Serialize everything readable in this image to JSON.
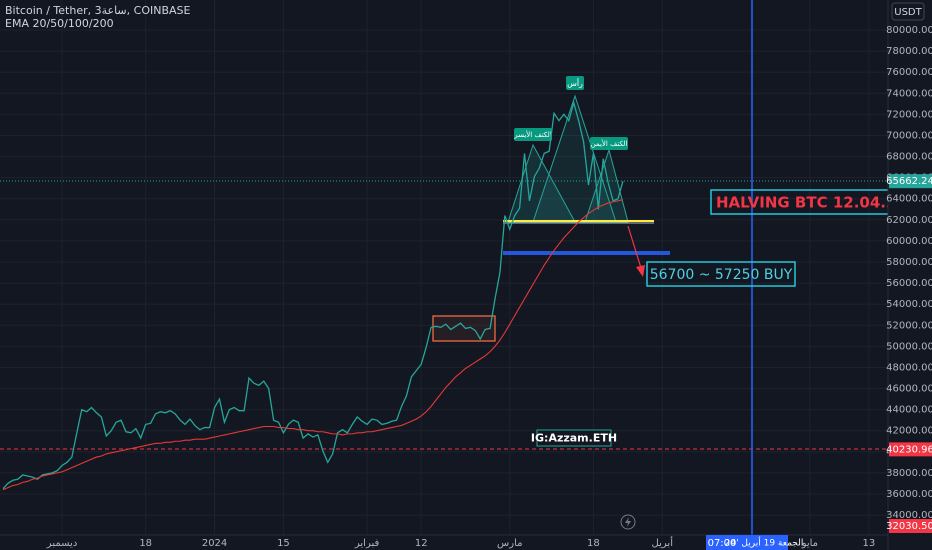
{
  "chart_data": {
    "type": "line",
    "title": "Bitcoin / Tether, 3ساعة, COINBASE",
    "subtitle": "EMA 20/50/100/200",
    "currency": "USDT",
    "categories": [
      null,
      null,
      null,
      null,
      null,
      null,
      null,
      null,
      null,
      null,
      null,
      null,
      "ديسمبر",
      null,
      null,
      null,
      null,
      null,
      null,
      null,
      null,
      null,
      null,
      null,
      null,
      null,
      null,
      null,
      null,
      "18",
      null,
      null,
      null,
      null,
      null,
      null,
      null,
      null,
      null,
      null,
      null,
      null,
      null,
      "2024",
      null,
      null,
      null,
      null,
      null,
      null,
      null,
      null,
      null,
      null,
      null,
      null,
      null,
      "15",
      null,
      null,
      null,
      null,
      null,
      null,
      null,
      null,
      null,
      null,
      null,
      null,
      null,
      null,
      null,
      null,
      "فبراير",
      null,
      null,
      null,
      null,
      null,
      null,
      null,
      null,
      null,
      null,
      "12",
      null,
      null,
      null,
      null,
      null,
      null,
      null,
      null,
      null,
      null,
      null,
      null,
      null,
      null,
      null,
      null,
      null,
      "مارس",
      null,
      null,
      null,
      null,
      null,
      null,
      null,
      null,
      null,
      null,
      null,
      null,
      null,
      null,
      null,
      null,
      "18",
      null,
      null,
      null,
      null,
      null,
      null,
      null,
      null,
      null,
      null,
      null,
      null,
      null,
      "أبريل",
      null,
      null,
      null,
      null,
      null,
      null,
      null,
      null,
      null,
      null,
      null,
      null,
      null,
      null,
      null,
      null,
      null,
      null,
      null,
      null,
      null,
      null,
      null,
      null,
      null,
      null,
      null,
      null,
      null,
      "مايو",
      null,
      null,
      null,
      null,
      null,
      null,
      null,
      null,
      null,
      null,
      null,
      "13",
      null,
      null,
      null,
      null
    ],
    "series": [
      {
        "color": "#26a69a",
        "values": [
          36500,
          37000,
          37300,
          37400,
          37800,
          37700,
          37600,
          37400,
          37800,
          37900,
          38000,
          38200,
          38700,
          39000,
          39500,
          41800,
          44000,
          43800,
          44200,
          43700,
          43300,
          41500,
          42000,
          42800,
          43000,
          41900,
          41800,
          42200,
          41300,
          42600,
          42700,
          43600,
          43800,
          43700,
          43900,
          43600,
          43000,
          42600,
          43100,
          42500,
          42100,
          42300,
          42300,
          44200,
          45000,
          42800,
          44000,
          44200,
          43900,
          43900,
          47000,
          46500,
          46300,
          46700,
          46000,
          43000,
          42800,
          41800,
          42600,
          43000,
          42800,
          41300,
          41700,
          41400,
          41600,
          40100,
          39000,
          39800,
          41800,
          42100,
          41800,
          42600,
          43300,
          42900,
          42600,
          43100,
          43000,
          42600,
          42700,
          42900,
          43000,
          44300,
          45300,
          47100,
          47700,
          48300,
          49900,
          51800,
          51900,
          51800,
          52100,
          51600,
          51900,
          52200,
          51700,
          51800,
          51500,
          50700,
          51600,
          51700,
          54500,
          57000,
          62400,
          61100,
          62400,
          63100,
          68300,
          63800,
          66100,
          66900,
          68300,
          68500,
          72100,
          71400,
          72000,
          71400,
          73100,
          71400,
          69400,
          65300,
          68300,
          63000,
          67800,
          65500,
          63800,
          64000,
          65662.24,
          null,
          null,
          null,
          null,
          null,
          null,
          null,
          null,
          null,
          null,
          null,
          null,
          null,
          null,
          null,
          null,
          null,
          null,
          null,
          null,
          null,
          null,
          null,
          null,
          null,
          null,
          null,
          null,
          null,
          null,
          null,
          null,
          null,
          null,
          null,
          null,
          null,
          null,
          null,
          null,
          null,
          null,
          null,
          null,
          null,
          null,
          null,
          null,
          null,
          null,
          null,
          null,
          null,
          null
        ]
      },
      {
        "color": "#e53935",
        "values": [
          36400,
          36600,
          36800,
          36900,
          37100,
          37200,
          37400,
          37500,
          37700,
          37800,
          37900,
          38000,
          38100,
          38300,
          38500,
          38700,
          38900,
          39100,
          39300,
          39500,
          39600,
          39800,
          39900,
          40000,
          40100,
          40200,
          40300,
          40400,
          40500,
          40600,
          40700,
          40800,
          40800,
          40900,
          40900,
          41000,
          41000,
          41100,
          41100,
          41200,
          41200,
          41200,
          41300,
          41400,
          41500,
          41600,
          41700,
          41800,
          41900,
          42000,
          42100,
          42200,
          42300,
          42400,
          42400,
          42400,
          42300,
          42300,
          42200,
          42200,
          42100,
          42100,
          42000,
          42000,
          41900,
          41900,
          41800,
          41700,
          41700,
          41600,
          41700,
          41700,
          41800,
          41800,
          41900,
          41900,
          42000,
          42100,
          42200,
          42300,
          42400,
          42500,
          42700,
          42900,
          43100,
          43400,
          43800,
          44300,
          44900,
          45500,
          46100,
          46600,
          47100,
          47500,
          47900,
          48200,
          48500,
          48800,
          49100,
          49500,
          50000,
          50600,
          51300,
          52100,
          52900,
          53700,
          54500,
          55300,
          56100,
          56900,
          57700,
          58400,
          59100,
          59700,
          60300,
          60800,
          61300,
          61800,
          62200,
          62600,
          62900,
          63200,
          63400,
          63600,
          63700,
          63800,
          63900,
          null,
          null,
          null,
          null,
          null,
          null,
          null,
          null,
          null,
          null,
          null,
          null,
          null,
          null,
          null,
          null,
          null,
          null,
          null,
          null,
          null,
          null,
          null,
          null,
          null,
          null,
          null,
          null,
          null,
          null,
          null,
          null,
          null,
          null,
          null,
          null,
          null,
          null,
          null,
          null,
          null,
          null,
          null,
          null,
          null,
          null,
          null,
          null,
          null,
          null,
          null,
          null,
          null,
          null
        ]
      }
    ],
    "ylim": [
      32110,
      82845
    ],
    "yticks": [
      {
        "value": 34000,
        "label": "34000.00"
      },
      {
        "value": 36000,
        "label": "36000.00"
      },
      {
        "value": 38000,
        "label": "38000.00"
      },
      {
        "value": 40000,
        "label": "40000.00"
      },
      {
        "value": 42000,
        "label": "42000.00"
      },
      {
        "value": 44000,
        "label": "44000.00"
      },
      {
        "value": 46000,
        "label": "46000.00"
      },
      {
        "value": 48000,
        "label": "48000.00"
      },
      {
        "value": 50000,
        "label": "50000.00"
      },
      {
        "value": 52000,
        "label": "52000.00"
      },
      {
        "value": 54000,
        "label": "54000.00"
      },
      {
        "value": 56000,
        "label": "56000.00"
      },
      {
        "value": 58000,
        "label": "58000.00"
      },
      {
        "value": 60000,
        "label": "60000.00"
      },
      {
        "value": 62000,
        "label": "62000.00"
      },
      {
        "value": 64000,
        "label": "64000.00"
      },
      {
        "value": 66000,
        "label": "66000.00"
      },
      {
        "value": 68000,
        "label": "68000.00"
      },
      {
        "value": 70000,
        "label": "70000.00"
      },
      {
        "value": 72000,
        "label": "72000.00"
      },
      {
        "value": 74000,
        "label": "74000.00"
      },
      {
        "value": 76000,
        "label": "76000.00"
      },
      {
        "value": 78000,
        "label": "78000.00"
      },
      {
        "value": 80000,
        "label": "80000.00"
      }
    ],
    "price_tags": [
      {
        "value": 40230.96,
        "label": "40230.96",
        "color": "#f23645"
      },
      {
        "value": 32030.5,
        "label": "32030.50",
        "color": "#f23645"
      }
    ],
    "annotations": {
      "head": "رأس",
      "left_shoulder": "الكتف الأيسر",
      "right_shoulder": "الكتف الأيمن",
      "halving": "HALVING BTC 12.04.2024",
      "buy": "56700 ~ 57250 BUY",
      "watermark": "IG:Azzam.ETH"
    },
    "crosshair": {
      "date": "الجمعة 19 أبريل '24",
      "time": "07:00"
    }
  }
}
